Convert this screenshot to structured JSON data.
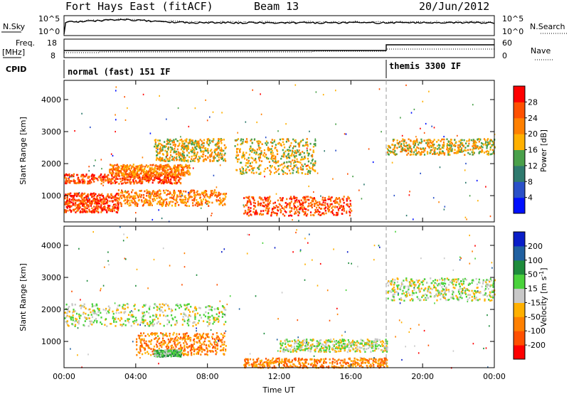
{
  "header": {
    "title": "Fort Hays East (fitACF)",
    "beam": "Beam 13",
    "date": "20/Jun/2012"
  },
  "strip_panels": {
    "nsky_label": "N.Sky",
    "nsky_ticks": [
      "10^5",
      "10^0"
    ],
    "nsearch_label": "N.Search",
    "nsearch_ticks": [
      "10^5",
      "10^0"
    ],
    "freq_label_line1": "Freq.",
    "freq_label_line2": "[MHz]",
    "freq_ticks": [
      "18",
      "8"
    ],
    "nave_label": "Nave",
    "nave_ticks": [
      "60",
      "0"
    ],
    "cpid_label": "CPID",
    "cpid_modes": [
      {
        "label": "normal (fast) 151 IF",
        "start": 0
      },
      {
        "label": "themis 3300 IF",
        "start": 18
      }
    ]
  },
  "chart_data": [
    {
      "type": "heatmap",
      "name": "power",
      "ylabel": "Slant Range [km]",
      "xlabel": "",
      "xlim": [
        0,
        24
      ],
      "ylim": [
        180,
        4600
      ],
      "yticks": [
        "1000",
        "2000",
        "3000",
        "4000"
      ],
      "ytick_values": [
        1000,
        2000,
        3000,
        4000
      ],
      "colorbar_label": "Power [dB]",
      "colorbar_ticks": [
        "4",
        "8",
        "12",
        "16",
        "20",
        "24",
        "28"
      ],
      "colorbar_colors": [
        "#0010ff",
        "#2a50c8",
        "#2f7a6e",
        "#4aa04a",
        "#ffb000",
        "#ff8000",
        "#ff5000",
        "#ff0000"
      ],
      "echo_bands": [
        {
          "t": [
            0,
            6.5
          ],
          "r": [
            1400,
            1700
          ],
          "level": 6
        },
        {
          "t": [
            2.5,
            7
          ],
          "r": [
            1650,
            2000
          ],
          "level": 5
        },
        {
          "t": [
            5,
            9
          ],
          "r": [
            2100,
            2800
          ],
          "level": 4
        },
        {
          "t": [
            0,
            3
          ],
          "r": [
            500,
            1100
          ],
          "level": 6
        },
        {
          "t": [
            3,
            9
          ],
          "r": [
            700,
            1200
          ],
          "level": 5
        },
        {
          "t": [
            9.5,
            14
          ],
          "r": [
            1700,
            2800
          ],
          "level": 4
        },
        {
          "t": [
            10,
            16
          ],
          "r": [
            400,
            1000
          ],
          "level": 6
        },
        {
          "t": [
            18,
            24
          ],
          "r": [
            2300,
            2800
          ],
          "level": 4
        }
      ]
    },
    {
      "type": "heatmap",
      "name": "velocity",
      "ylabel": "Slant Range [km]",
      "xlabel": "Time UT",
      "xlim": [
        0,
        24
      ],
      "ylim": [
        180,
        4600
      ],
      "xticks": [
        "00:00",
        "04:00",
        "08:00",
        "12:00",
        "16:00",
        "20:00",
        "00:00"
      ],
      "xtick_values": [
        0,
        4,
        8,
        12,
        16,
        20,
        24
      ],
      "yticks": [
        "1000",
        "2000",
        "3000",
        "4000"
      ],
      "ytick_values": [
        1000,
        2000,
        3000,
        4000
      ],
      "colorbar_label": "Velocity [m s",
      "colorbar_label_sup": "-1",
      "colorbar_label_end": "]",
      "colorbar_ticks": [
        "200",
        "100",
        "50",
        "15",
        "-15",
        "-50",
        "-100",
        "-200"
      ],
      "colorbar_colors": [
        "#0a1ec8",
        "#2060a0",
        "#1e8c3c",
        "#4ad23c",
        "#c8c8c8",
        "#ffb000",
        "#ff8000",
        "#ff5000",
        "#ff0000"
      ],
      "echo_bands": [
        {
          "t": [
            0,
            9
          ],
          "r": [
            1500,
            2200
          ],
          "level": 4
        },
        {
          "t": [
            4,
            9
          ],
          "r": [
            600,
            1300
          ],
          "level": 6
        },
        {
          "t": [
            5,
            6.5
          ],
          "r": [
            550,
            750
          ],
          "level": 3
        },
        {
          "t": [
            10,
            18
          ],
          "r": [
            200,
            500
          ],
          "level": 6
        },
        {
          "t": [
            12,
            18
          ],
          "r": [
            700,
            1100
          ],
          "level": 4
        },
        {
          "t": [
            18,
            24
          ],
          "r": [
            2300,
            3000
          ],
          "level": 4
        }
      ]
    }
  ]
}
